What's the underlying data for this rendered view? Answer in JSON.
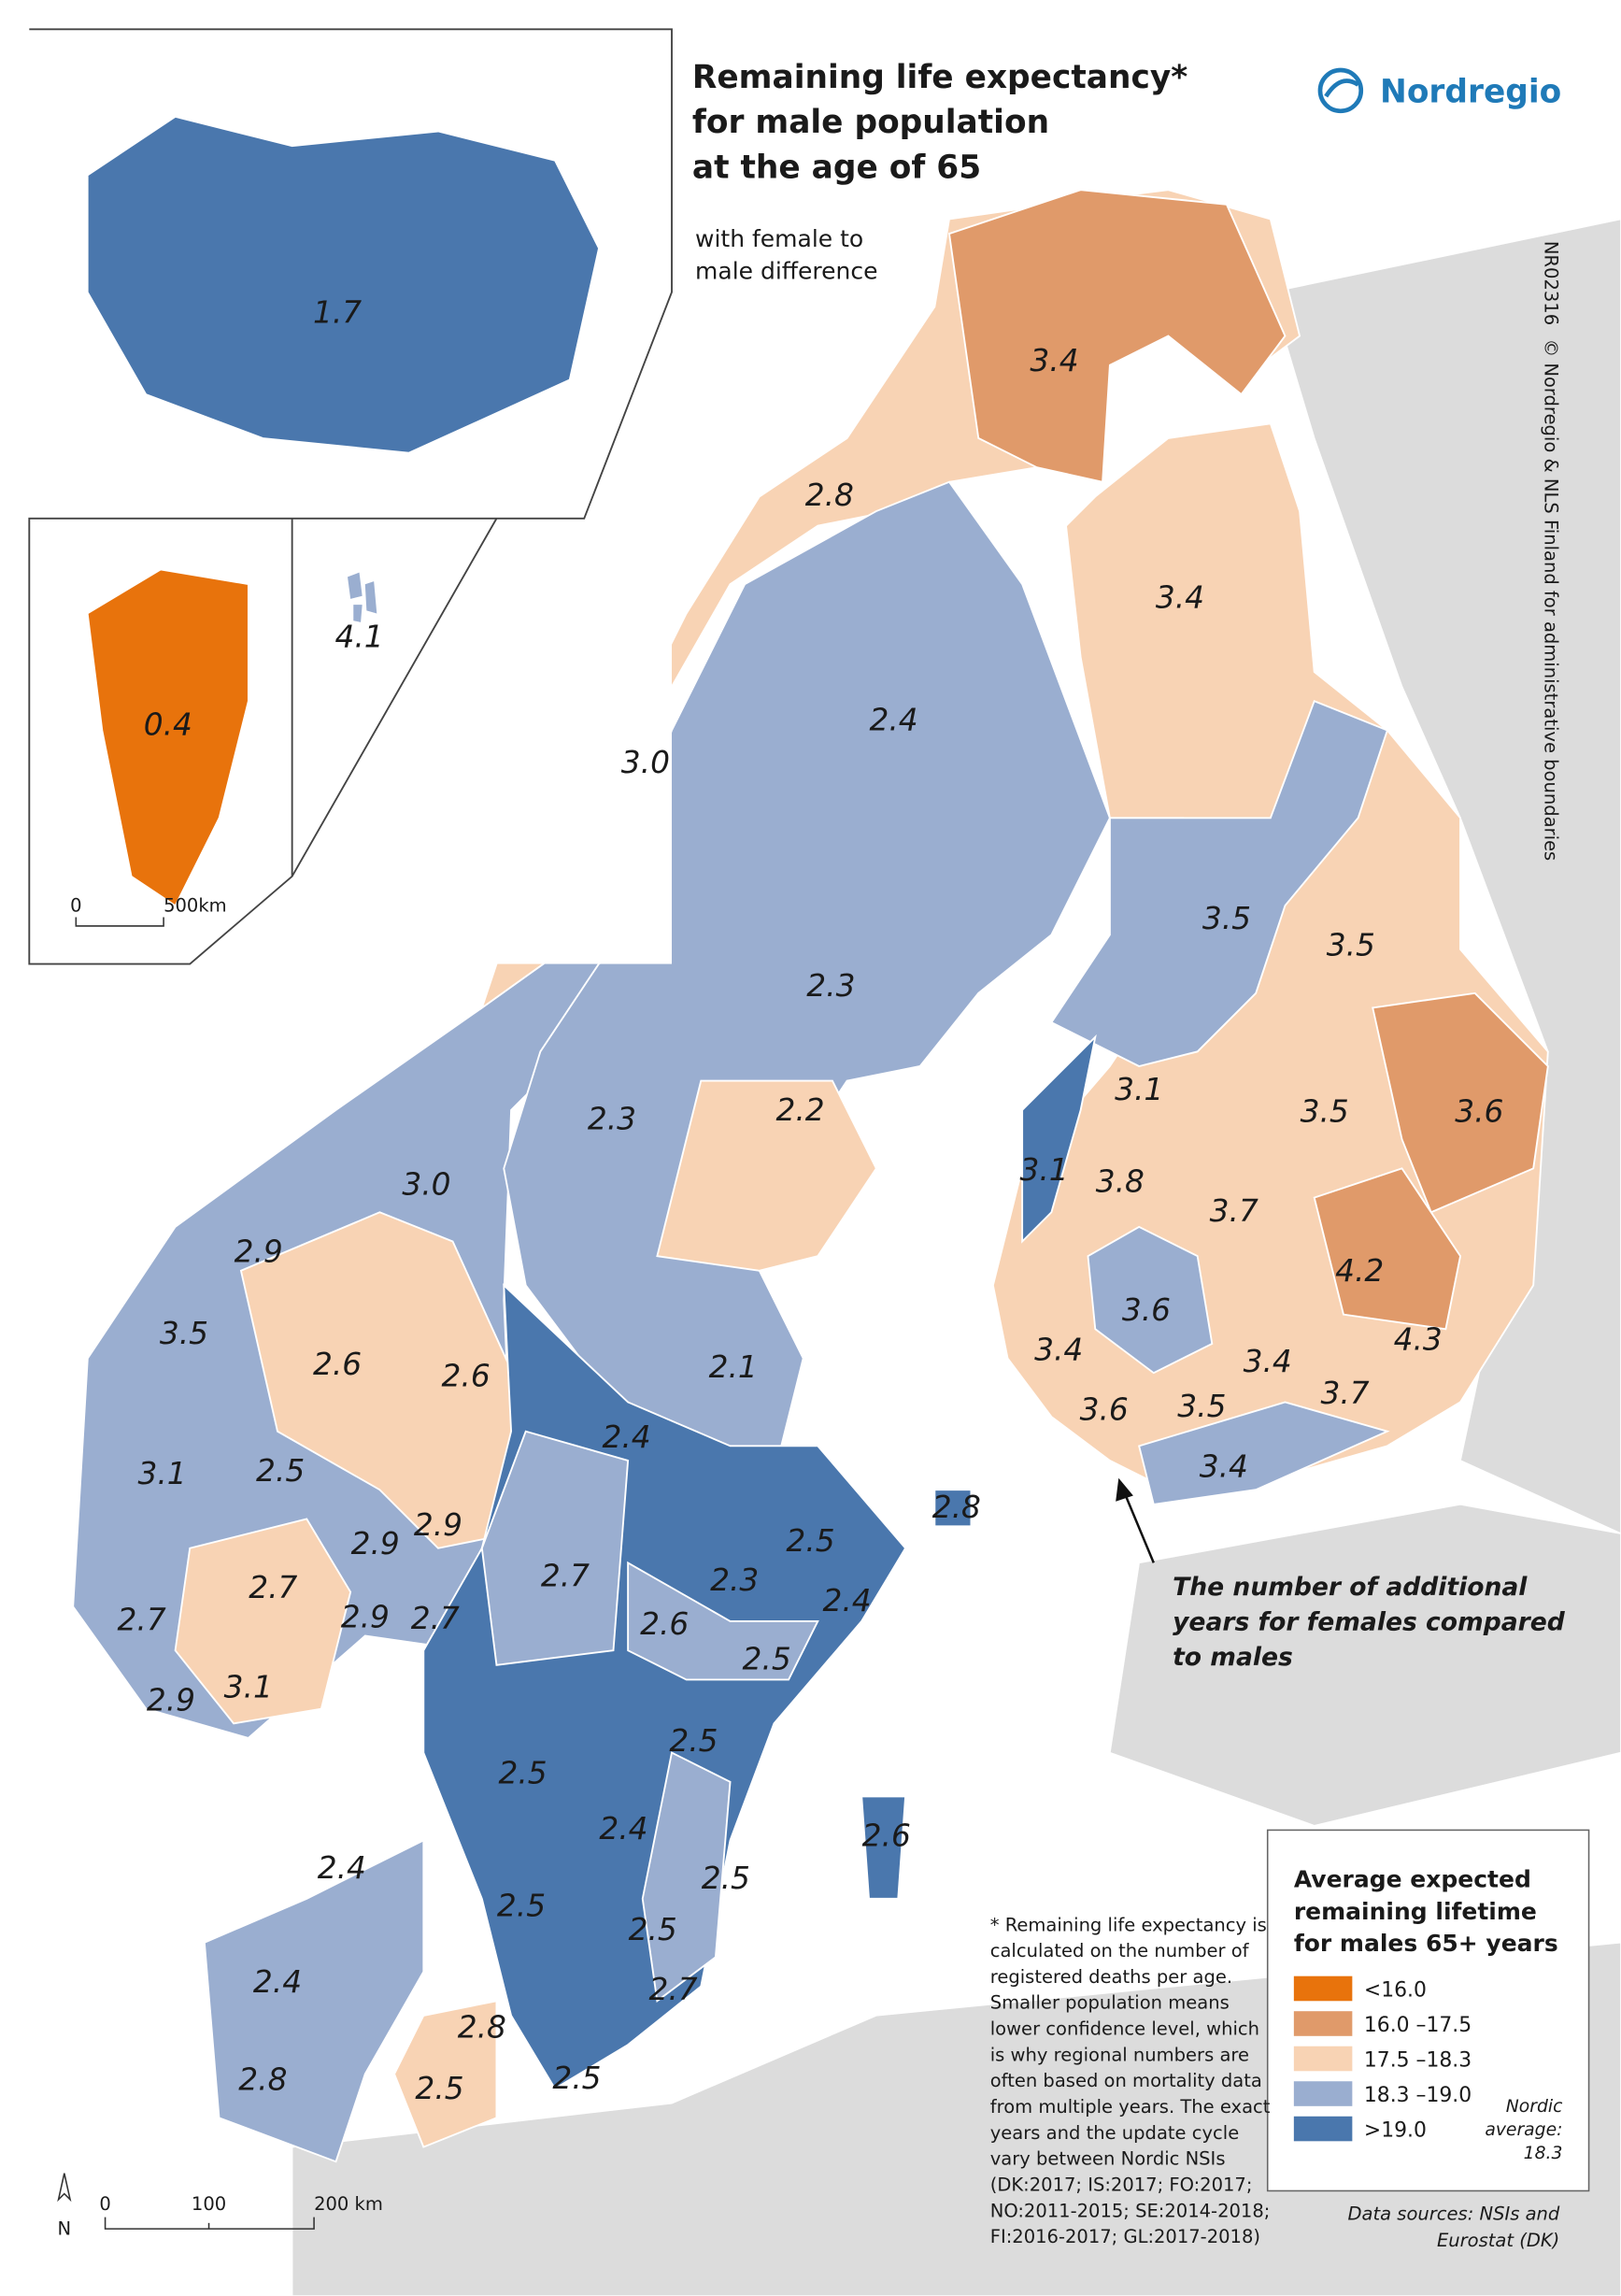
{
  "header": {
    "title_lines": [
      "Remaining life expectancy*",
      "for male population",
      "at the age of 65"
    ],
    "subtitle_lines": [
      "with female to",
      "male difference"
    ],
    "brand": "Nordregio"
  },
  "side_note": {
    "code": "NR02316",
    "copyright": "© Nordregio & NLS Finland for administrative boundaries"
  },
  "region_labels": [
    "1.7",
    "0.4",
    "4.1",
    "3.4",
    "2.8",
    "3.4",
    "2.4",
    "3.0",
    "2.3",
    "3.5",
    "3.5",
    "2.3",
    "2.2",
    "3.0",
    "3.1",
    "3.1",
    "3.8",
    "3.6",
    "3.5",
    "3.7",
    "4.2",
    "3.6",
    "4.3",
    "2.9",
    "3.5",
    "2.6",
    "2.6",
    "2.1",
    "2.4",
    "3.4",
    "3.4",
    "3.7",
    "3.5",
    "3.6",
    "3.4",
    "3.1",
    "2.5",
    "2.9",
    "2.9",
    "2.8",
    "2.5",
    "2.3",
    "2.4",
    "2.7",
    "2.7",
    "2.9",
    "2.7",
    "2.7",
    "2.6",
    "2.5",
    "2.9",
    "3.1",
    "2.5",
    "2.5",
    "2.4",
    "2.5",
    "2.6",
    "2.4",
    "2.5",
    "2.5",
    "2.4",
    "2.7",
    "2.8",
    "2.5",
    "2.8",
    "2.5"
  ],
  "annotation_lines": [
    "The number of additional",
    "years for females compared",
    "to males"
  ],
  "legend": {
    "title_lines": [
      "Average expected",
      "remaining lifetime",
      "for males 65+ years"
    ],
    "items": [
      {
        "label": "<16.0",
        "color": "#e8730c"
      },
      {
        "label": "16.0 –17.5",
        "color": "#e09a6a"
      },
      {
        "label": "17.5 –18.3",
        "color": "#f8d3b4"
      },
      {
        "label": "18.3 –19.0",
        "color": "#9aaed0"
      },
      {
        "label": ">19.0",
        "color": "#4a77ad"
      }
    ],
    "average_lines": [
      "Nordic",
      "average:",
      "18.3"
    ]
  },
  "footnote_lines": [
    "* Remaining life expectancy is",
    "calculated on the number of",
    "registered deaths per age.",
    "Smaller population means",
    "lower confidence level, which",
    "is why regional numbers are",
    "often based on mortality data",
    "from multiple years. The exact",
    "years and the update cycle",
    "vary between Nordic NSIs",
    "(DK:2017;  IS:2017;  FO:2017;",
    "NO:2011-2015;  SE:2014-2018;",
    "FI:2016-2017;  GL:2017-2018)"
  ],
  "sources_lines": [
    "Data sources: NSIs and",
    "Eurostat (DK)"
  ],
  "scale_inset": [
    "0",
    "500km"
  ],
  "scale_main": [
    "0",
    "100",
    "200 km"
  ],
  "north": "N"
}
